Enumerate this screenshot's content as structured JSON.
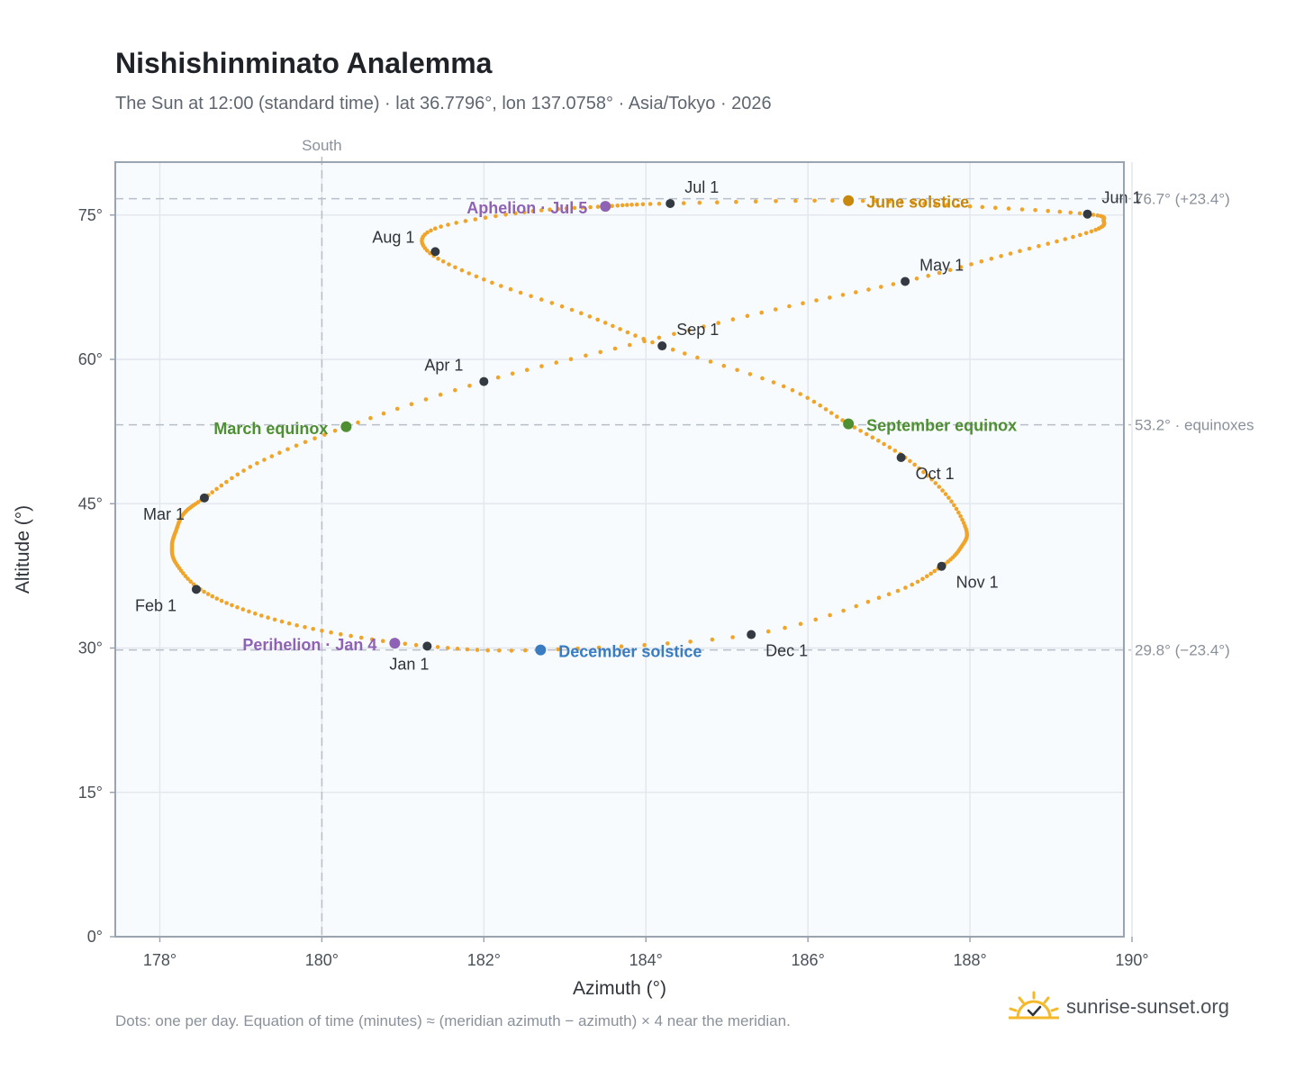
{
  "header": {
    "title": "Nishishinminato Analemma",
    "subtitle": "The Sun at 12:00 (standard time) · lat 36.7796°, lon 137.0758° · Asia/Tokyo · 2026"
  },
  "footer": {
    "note": "Dots: one per day. Equation of time (minutes) ≈ (meridian azimuth − azimuth) × 4 near the meridian.",
    "brand": "sunrise-sunset.org"
  },
  "colors": {
    "path": "#f0a52a",
    "month_marker": "#343a42",
    "equinox": "#4e8f32",
    "june_solstice": "#c8880c",
    "december_solstice": "#3a7cc2",
    "apsis": "#8e62b4",
    "plot_bg": "#f8fbfd",
    "grid": "#e3e8ee",
    "ref_line": "#b7c0ca",
    "frame": "#9aa4b0"
  },
  "chart_data": {
    "type": "scatter",
    "title": "Nishishinminato Analemma",
    "xlabel": "Azimuth (°)",
    "ylabel": "Altitude (°)",
    "xlim": [
      177.45,
      189.9
    ],
    "ylim": [
      0,
      80.5
    ],
    "xticks": [
      178,
      180,
      182,
      184,
      186,
      188,
      190
    ],
    "xtick_labels": [
      "178°",
      "180°",
      "182°",
      "184°",
      "186°",
      "188°",
      "190°"
    ],
    "yticks": [
      0,
      15,
      30,
      45,
      60,
      75
    ],
    "ytick_labels": [
      "0°",
      "15°",
      "30°",
      "45°",
      "60°",
      "75°"
    ],
    "grid": true,
    "meridian": {
      "x": 180,
      "label": "South"
    },
    "reference_lines": [
      {
        "y": 76.7,
        "label": "76.7° (+23.4°)"
      },
      {
        "y": 53.2,
        "label": "53.2° · equinoxes"
      },
      {
        "y": 29.8,
        "label": "29.8° (−23.4°)"
      }
    ],
    "analemma_path": [
      [
        181.3,
        30.2
      ],
      [
        180.0,
        31.8
      ],
      [
        179.1,
        33.8
      ],
      [
        178.5,
        36.1
      ],
      [
        178.2,
        38.8
      ],
      [
        178.15,
        40.6
      ],
      [
        178.2,
        42.2
      ],
      [
        178.3,
        44.0
      ],
      [
        178.55,
        45.6
      ],
      [
        179.2,
        49.2
      ],
      [
        180.3,
        53.0
      ],
      [
        182.0,
        57.7
      ],
      [
        183.8,
        61.5
      ],
      [
        185.6,
        65.2
      ],
      [
        187.2,
        68.1
      ],
      [
        188.5,
        71.0
      ],
      [
        189.5,
        73.3
      ],
      [
        189.65,
        74.4
      ],
      [
        189.45,
        75.1
      ],
      [
        188.0,
        75.9
      ],
      [
        186.5,
        76.5
      ],
      [
        184.3,
        76.2
      ],
      [
        183.5,
        75.9
      ],
      [
        182.5,
        75.3
      ],
      [
        181.4,
        73.6
      ],
      [
        181.3,
        71.3
      ],
      [
        182.0,
        68.3
      ],
      [
        183.2,
        64.8
      ],
      [
        184.2,
        61.4
      ],
      [
        185.7,
        57.2
      ],
      [
        186.5,
        53.3
      ],
      [
        187.2,
        49.8
      ],
      [
        187.7,
        46.0
      ],
      [
        187.95,
        42.4
      ],
      [
        187.9,
        40.6
      ],
      [
        187.65,
        38.5
      ],
      [
        187.0,
        35.6
      ],
      [
        185.3,
        31.4
      ],
      [
        182.7,
        29.8
      ],
      [
        181.3,
        30.2
      ]
    ],
    "month_markers": [
      {
        "label": "Jan 1",
        "x": 181.3,
        "y": 30.2
      },
      {
        "label": "Feb 1",
        "x": 178.45,
        "y": 36.1
      },
      {
        "label": "Mar 1",
        "x": 178.55,
        "y": 45.6
      },
      {
        "label": "Apr 1",
        "x": 182.0,
        "y": 57.7
      },
      {
        "label": "May 1",
        "x": 187.2,
        "y": 68.1
      },
      {
        "label": "Jun 1",
        "x": 189.45,
        "y": 75.1
      },
      {
        "label": "Jul 1",
        "x": 184.3,
        "y": 76.2
      },
      {
        "label": "Aug 1",
        "x": 181.4,
        "y": 71.2
      },
      {
        "label": "Sep 1",
        "x": 184.2,
        "y": 61.4
      },
      {
        "label": "Oct 1",
        "x": 187.15,
        "y": 49.8
      },
      {
        "label": "Nov 1",
        "x": 187.65,
        "y": 38.5
      },
      {
        "label": "Dec 1",
        "x": 185.3,
        "y": 31.4
      }
    ],
    "events": [
      {
        "label": "March equinox",
        "x": 180.3,
        "y": 53.0,
        "color_key": "equinox"
      },
      {
        "label": "June solstice",
        "x": 186.5,
        "y": 76.5,
        "color_key": "june_solstice"
      },
      {
        "label": "September equinox",
        "x": 186.5,
        "y": 53.3,
        "color_key": "equinox"
      },
      {
        "label": "December solstice",
        "x": 182.7,
        "y": 29.8,
        "color_key": "december_solstice"
      },
      {
        "label": "Aphelion · Jul 5",
        "x": 183.5,
        "y": 75.9,
        "color_key": "apsis"
      },
      {
        "label": "Perihelion · Jan 4",
        "x": 180.9,
        "y": 30.5,
        "color_key": "apsis"
      }
    ]
  }
}
